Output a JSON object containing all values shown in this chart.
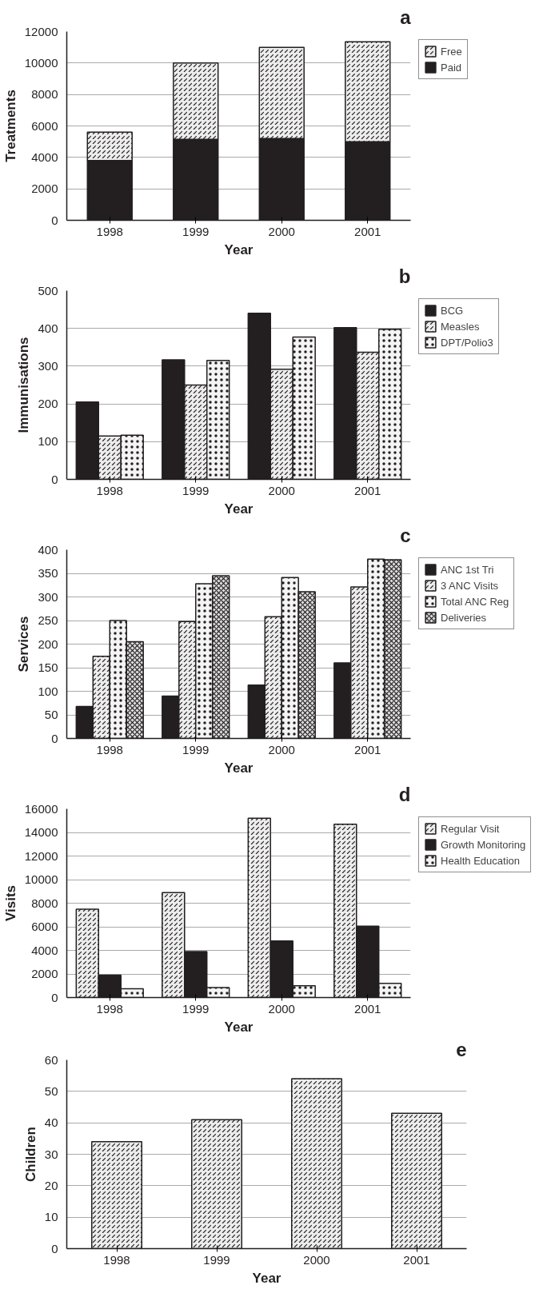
{
  "chart_data": [
    {
      "type": "bar",
      "stacked": true,
      "categories": [
        "1998",
        "1999",
        "2000",
        "2001"
      ],
      "xlabel": "Year",
      "ylabel": "Treatments",
      "ylim": [
        0,
        12000
      ],
      "yticks": [
        0,
        2000,
        4000,
        6000,
        8000,
        10000,
        12000
      ],
      "grid": "y",
      "legend": "right",
      "annotations": [
        "a"
      ],
      "series": [
        {
          "name": "Paid",
          "color": "#231f20",
          "values": [
            3800,
            5150,
            5200,
            5000
          ]
        },
        {
          "name": "Free",
          "color": "#ececec",
          "values": [
            1800,
            4850,
            5800,
            6350
          ]
        }
      ]
    },
    {
      "type": "bar",
      "categories": [
        "1998",
        "1999",
        "2000",
        "2001"
      ],
      "xlabel": "Year",
      "ylabel": "Immunisations",
      "ylim": [
        0,
        500
      ],
      "yticks": [
        0,
        100,
        200,
        300,
        400,
        500
      ],
      "grid": "y",
      "legend": "right",
      "annotations": [
        "b"
      ],
      "series": [
        {
          "name": "BCG",
          "color": "#231f20",
          "values": [
            205,
            317,
            440,
            402
          ]
        },
        {
          "name": "Measles",
          "color": "#ececec",
          "values": [
            115,
            250,
            292,
            337
          ]
        },
        {
          "name": "DPT/Polio3",
          "color": "#f4f4f4",
          "values": [
            117,
            315,
            377,
            398
          ]
        }
      ]
    },
    {
      "type": "bar",
      "categories": [
        "1998",
        "1999",
        "2000",
        "2001"
      ],
      "xlabel": "Year",
      "ylabel": "Services",
      "ylim": [
        0,
        400
      ],
      "yticks": [
        0,
        50,
        100,
        150,
        200,
        250,
        300,
        350,
        400
      ],
      "grid": "y",
      "legend": "right",
      "annotations": [
        "c"
      ],
      "series": [
        {
          "name": "ANC 1st Tri",
          "color": "#231f20",
          "values": [
            68,
            90,
            113,
            160
          ]
        },
        {
          "name": "3 ANC Visits",
          "color": "#ececec",
          "values": [
            174,
            248,
            258,
            321
          ]
        },
        {
          "name": "Total ANC Reg",
          "color": "#f4f4f4",
          "values": [
            250,
            328,
            341,
            380
          ]
        },
        {
          "name": "Deliveries",
          "color": "#dddddd",
          "values": [
            205,
            345,
            311,
            379
          ]
        }
      ]
    },
    {
      "type": "bar",
      "categories": [
        "1998",
        "1999",
        "2000",
        "2001"
      ],
      "xlabel": "Year",
      "ylabel": "Visits",
      "ylim": [
        0,
        16000
      ],
      "yticks": [
        0,
        2000,
        4000,
        6000,
        8000,
        10000,
        12000,
        14000,
        16000
      ],
      "grid": "y",
      "legend": "right",
      "annotations": [
        "d"
      ],
      "series": [
        {
          "name": "Regular Visit",
          "color": "#ececec",
          "values": [
            7500,
            8900,
            15200,
            14700
          ]
        },
        {
          "name": "Growth Monitoring",
          "color": "#231f20",
          "values": [
            1900,
            3900,
            4800,
            6050
          ]
        },
        {
          "name": "Health Education",
          "color": "#f4f4f4",
          "values": [
            750,
            850,
            1000,
            1200
          ]
        }
      ]
    },
    {
      "type": "bar",
      "categories": [
        "1998",
        "1999",
        "2000",
        "2001"
      ],
      "xlabel": "Year",
      "ylabel": "Children",
      "ylim": [
        0,
        60
      ],
      "yticks": [
        0,
        10,
        20,
        30,
        40,
        50,
        60
      ],
      "grid": "y",
      "annotations": [
        "e"
      ],
      "series": [
        {
          "color": "#ececec",
          "values": [
            34,
            41,
            54,
            43
          ]
        }
      ]
    }
  ]
}
